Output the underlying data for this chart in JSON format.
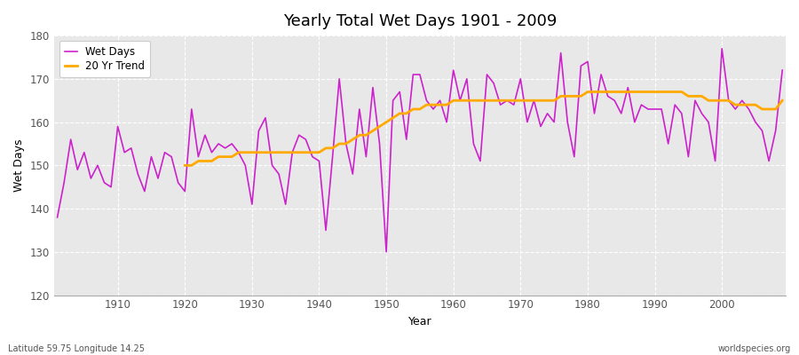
{
  "title": "Yearly Total Wet Days 1901 - 2009",
  "xlabel": "Year",
  "ylabel": "Wet Days",
  "subtitle_left": "Latitude 59.75 Longitude 14.25",
  "subtitle_right": "worldspecies.org",
  "ylim": [
    120,
    180
  ],
  "yticks": [
    120,
    130,
    140,
    150,
    160,
    170,
    180
  ],
  "line_color": "#cc22cc",
  "trend_color": "#ffaa00",
  "bg_color": "#e0e0e0",
  "plot_bg_color": "#e8e8e8",
  "legend_labels": [
    "Wet Days",
    "20 Yr Trend"
  ],
  "years": [
    1901,
    1902,
    1903,
    1904,
    1905,
    1906,
    1907,
    1908,
    1909,
    1910,
    1911,
    1912,
    1913,
    1914,
    1915,
    1916,
    1917,
    1918,
    1919,
    1920,
    1921,
    1922,
    1923,
    1924,
    1925,
    1926,
    1927,
    1928,
    1929,
    1930,
    1931,
    1932,
    1933,
    1934,
    1935,
    1936,
    1937,
    1938,
    1939,
    1940,
    1941,
    1942,
    1943,
    1944,
    1945,
    1946,
    1947,
    1948,
    1949,
    1950,
    1951,
    1952,
    1953,
    1954,
    1955,
    1956,
    1957,
    1958,
    1959,
    1960,
    1961,
    1962,
    1963,
    1964,
    1965,
    1966,
    1967,
    1968,
    1969,
    1970,
    1971,
    1972,
    1973,
    1974,
    1975,
    1976,
    1977,
    1978,
    1979,
    1980,
    1981,
    1982,
    1983,
    1984,
    1985,
    1986,
    1987,
    1988,
    1989,
    1990,
    1991,
    1992,
    1993,
    1994,
    1995,
    1996,
    1997,
    1998,
    1999,
    2000,
    2001,
    2002,
    2003,
    2004,
    2005,
    2006,
    2007,
    2008,
    2009
  ],
  "wet_days": [
    138,
    146,
    156,
    149,
    153,
    147,
    150,
    146,
    145,
    159,
    153,
    154,
    148,
    144,
    152,
    147,
    153,
    152,
    146,
    144,
    163,
    152,
    157,
    153,
    155,
    154,
    155,
    153,
    150,
    141,
    158,
    161,
    150,
    148,
    141,
    153,
    157,
    156,
    152,
    151,
    135,
    152,
    170,
    155,
    148,
    163,
    152,
    168,
    155,
    130,
    165,
    167,
    156,
    171,
    171,
    165,
    163,
    165,
    160,
    172,
    165,
    170,
    155,
    151,
    171,
    169,
    164,
    165,
    164,
    170,
    160,
    165,
    159,
    162,
    160,
    176,
    160,
    152,
    173,
    174,
    162,
    171,
    166,
    165,
    162,
    168,
    160,
    164,
    163,
    163,
    163,
    155,
    164,
    162,
    152,
    165,
    162,
    160,
    151,
    177,
    165,
    163,
    165,
    163,
    160,
    158,
    151,
    158,
    172
  ],
  "trend": [
    null,
    null,
    null,
    null,
    null,
    null,
    null,
    null,
    null,
    null,
    null,
    null,
    null,
    null,
    null,
    null,
    null,
    null,
    null,
    150,
    150,
    151,
    151,
    151,
    152,
    152,
    152,
    153,
    153,
    153,
    153,
    153,
    153,
    153,
    153,
    153,
    153,
    153,
    153,
    153,
    154,
    154,
    155,
    155,
    156,
    157,
    157,
    158,
    159,
    160,
    161,
    162,
    162,
    163,
    163,
    164,
    164,
    164,
    164,
    165,
    165,
    165,
    165,
    165,
    165,
    165,
    165,
    165,
    165,
    165,
    165,
    165,
    165,
    165,
    165,
    166,
    166,
    166,
    166,
    167,
    167,
    167,
    167,
    167,
    167,
    167,
    167,
    167,
    167,
    167,
    167,
    167,
    167,
    167,
    166,
    166,
    166,
    165,
    165,
    165,
    165,
    164,
    164,
    164,
    164,
    163,
    163,
    163,
    165
  ]
}
